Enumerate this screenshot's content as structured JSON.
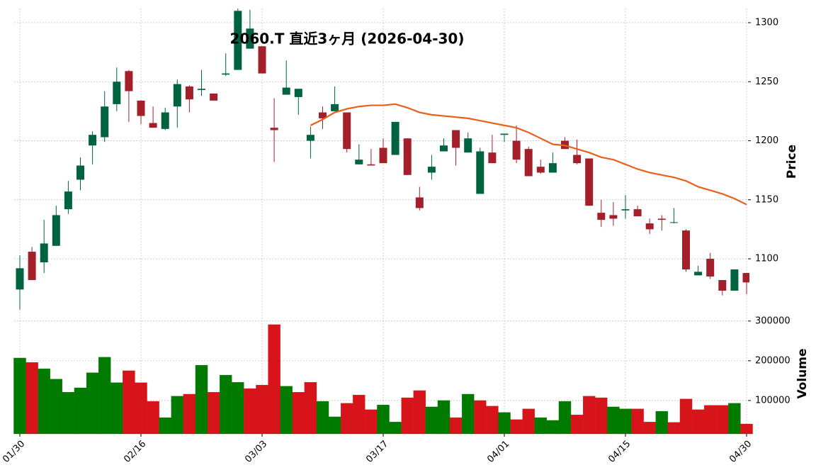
{
  "chart_data": {
    "type": "candlestick",
    "title": "2060.T 直近3ヶ月 (2026-04-30)",
    "ylabel": "Price",
    "categories": [
      "01/30",
      null,
      null,
      null,
      null,
      null,
      null,
      null,
      null,
      null,
      "02/16",
      null,
      null,
      null,
      null,
      null,
      null,
      null,
      null,
      null,
      "03/03",
      null,
      null,
      null,
      null,
      null,
      null,
      null,
      null,
      null,
      "03/17",
      null,
      null,
      null,
      null,
      null,
      null,
      null,
      null,
      null,
      "04/01",
      null,
      null,
      null,
      null,
      null,
      null,
      null,
      null,
      null,
      "04/15",
      null,
      null,
      null,
      null,
      null,
      null,
      null,
      null,
      null,
      "04/30"
    ],
    "open": [
      1074,
      1106,
      1097,
      1111,
      1142,
      1167,
      1196,
      1203,
      1231,
      1259,
      1234,
      1215,
      1210,
      1229,
      1246,
      1243,
      1240,
      1256,
      1260,
      1278,
      1280,
      1211,
      1239,
      1237,
      1200,
      1224,
      1225,
      1224,
      1180,
      1180,
      1194,
      1188,
      1202,
      1152,
      1173,
      1191,
      1209,
      1190,
      1155,
      1190,
      1205,
      1200,
      1193,
      1178,
      1173,
      1200,
      1188,
      1185,
      1139,
      1137,
      1141,
      1142,
      1130,
      1134,
      1131,
      1124,
      1086,
      1100,
      1082,
      1073,
      1088
    ],
    "high": [
      1103,
      1110,
      1133,
      1145,
      1166,
      1186,
      1208,
      1242,
      1262,
      1260,
      1234,
      1229,
      1228,
      1252,
      1247,
      1260,
      1240,
      1274,
      1312,
      1311,
      1280,
      1236,
      1268,
      1244,
      1212,
      1229,
      1246,
      1224,
      1197,
      1193,
      1202,
      1216,
      1202,
      1161,
      1188,
      1202,
      1209,
      1207,
      1194,
      1205,
      1206,
      1213,
      1195,
      1184,
      1190,
      1203,
      1201,
      1185,
      1150,
      1148,
      1154,
      1145,
      1134,
      1137,
      1143,
      1125,
      1094,
      1105,
      1082,
      1091,
      1088
    ],
    "low": [
      1057,
      1082,
      1088,
      1111,
      1138,
      1158,
      1180,
      1199,
      1225,
      1216,
      1214,
      1211,
      1209,
      1211,
      1224,
      1238,
      1234,
      1255,
      1260,
      1278,
      1257,
      1182,
      1239,
      1222,
      1185,
      1210,
      1225,
      1190,
      1180,
      1179,
      1181,
      1188,
      1171,
      1141,
      1167,
      1191,
      1179,
      1190,
      1155,
      1181,
      1199,
      1181,
      1170,
      1172,
      1173,
      1193,
      1180,
      1145,
      1127,
      1128,
      1134,
      1136,
      1121,
      1124,
      1130,
      1089,
      1086,
      1083,
      1069,
      1073,
      1070
    ],
    "close": [
      1092,
      1082,
      1113,
      1137,
      1157,
      1179,
      1205,
      1229,
      1250,
      1242,
      1221,
      1211,
      1224,
      1248,
      1235,
      1244,
      1234,
      1257,
      1310,
      1295,
      1257,
      1209,
      1245,
      1244,
      1205,
      1219,
      1231,
      1193,
      1184,
      1179,
      1181,
      1216,
      1171,
      1143,
      1178,
      1196,
      1194,
      1202,
      1191,
      1181,
      1206,
      1184,
      1170,
      1173,
      1181,
      1193,
      1181,
      1145,
      1133,
      1134,
      1142,
      1136,
      1125,
      1133,
      1131,
      1091,
      1089,
      1085,
      1073,
      1091,
      1080
    ],
    "up_color": "#006340",
    "down_color": "#a3202a",
    "moving_average": {
      "color": "#e8601c",
      "values": [
        null,
        null,
        null,
        null,
        null,
        null,
        null,
        null,
        null,
        null,
        null,
        null,
        null,
        null,
        null,
        null,
        null,
        null,
        null,
        null,
        null,
        null,
        null,
        null,
        1213,
        1218,
        1224,
        1227,
        1229,
        1230,
        1230,
        1231,
        1228,
        1224,
        1222,
        1221,
        1220,
        1219,
        1217,
        1215,
        1213,
        1211,
        1207,
        1202,
        1197,
        1196,
        1193,
        1190,
        1186,
        1184,
        1180,
        1176,
        1173,
        1171,
        1169,
        1166,
        1161,
        1158,
        1155,
        1151,
        1146
      ]
    },
    "ylim": [
      1055,
      1312
    ],
    "yticks": [
      1100,
      1150,
      1200,
      1250,
      1300
    ],
    "grid": true,
    "volume": {
      "ylabel": "Volume",
      "up_color": "#007a00",
      "down_color": "#d7141a",
      "values": [
        207000,
        196000,
        180000,
        154000,
        121000,
        132000,
        170000,
        209000,
        145000,
        175000,
        145000,
        98000,
        57000,
        111000,
        116000,
        189000,
        121000,
        164000,
        146000,
        130000,
        139000,
        291000,
        136000,
        121000,
        146000,
        98000,
        59000,
        93000,
        114000,
        77000,
        89000,
        46000,
        107000,
        125000,
        84000,
        100000,
        57000,
        116000,
        100000,
        86000,
        70000,
        52000,
        79000,
        57000,
        50000,
        98000,
        64000,
        111000,
        107000,
        84000,
        79000,
        79000,
        46000,
        73000,
        45000,
        104000,
        77000,
        88000,
        88000,
        93000,
        41000
      ],
      "ylim": [
        16000,
        314000
      ],
      "yticks": [
        100000,
        200000,
        300000
      ]
    }
  }
}
